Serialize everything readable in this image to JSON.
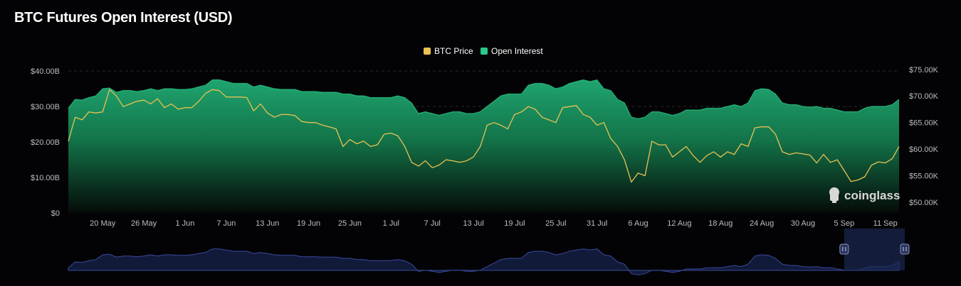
{
  "page": {
    "title": "BTC Futures Open Interest (USD)"
  },
  "watermark": {
    "text": "coinglass",
    "icon": "coinglass-logo-icon"
  },
  "colors": {
    "background": "#030306",
    "price_line": "#e8c252",
    "oi_fill_top": "#1fa46f",
    "oi_fill_bottom": "#050b08",
    "oi_legend": "#28c989",
    "grid": "#2a2a2a",
    "text": "#bdbdbd",
    "navigator_line": "#3a4a9a",
    "navigator_fill": "#121a3a",
    "navigator_selection": "#1b2a55"
  },
  "chart_data": {
    "type": "area",
    "title": "BTC Futures Open Interest (USD)",
    "legend": {
      "position": "top-center",
      "entries": [
        {
          "name": "BTC Price",
          "color": "#e8c252"
        },
        {
          "name": "Open Interest",
          "color": "#28c989"
        }
      ]
    },
    "x_ticks": [
      "20 May",
      "26 May",
      "1 Jun",
      "7 Jun",
      "13 Jun",
      "19 Jun",
      "25 Jun",
      "1 Jul",
      "7 Jul",
      "13 Jul",
      "19 Jul",
      "25 Jul",
      "31 Jul",
      "6 Aug",
      "12 Aug",
      "18 Aug",
      "24 Aug",
      "30 Aug",
      "5 Sep",
      "11 Sep"
    ],
    "x_range": [
      "2024-05-15",
      "2024-09-13"
    ],
    "y_left": {
      "ticks": [
        "$0",
        "$10.00B",
        "$20.00B",
        "$30.00B",
        "$40.00B"
      ],
      "range": [
        0,
        40
      ],
      "unit": "USD billions"
    },
    "y_right": {
      "ticks": [
        "$50.00K",
        "$55.00K",
        "$60.00K",
        "$65.00K",
        "$70.00K",
        "$75.00K"
      ],
      "range": [
        48000,
        74700
      ],
      "unit": "USD"
    },
    "grid": true,
    "series": [
      {
        "name": "Open Interest",
        "axis": "left",
        "points": [
          [
            "2024-05-15",
            29.5
          ],
          [
            "2024-05-16",
            32.0
          ],
          [
            "2024-05-17",
            31.8
          ],
          [
            "2024-05-18",
            32.5
          ],
          [
            "2024-05-19",
            33.0
          ],
          [
            "2024-05-20",
            35.0
          ],
          [
            "2024-05-21",
            35.2
          ],
          [
            "2024-05-22",
            34.0
          ],
          [
            "2024-05-23",
            34.5
          ],
          [
            "2024-05-24",
            34.5
          ],
          [
            "2024-05-25",
            34.2
          ],
          [
            "2024-05-26",
            34.5
          ],
          [
            "2024-05-27",
            35.0
          ],
          [
            "2024-05-28",
            34.5
          ],
          [
            "2024-05-29",
            35.0
          ],
          [
            "2024-05-30",
            35.0
          ],
          [
            "2024-05-31",
            34.8
          ],
          [
            "2024-06-01",
            34.8
          ],
          [
            "2024-06-02",
            35.0
          ],
          [
            "2024-06-03",
            35.5
          ],
          [
            "2024-06-04",
            36.0
          ],
          [
            "2024-06-05",
            37.5
          ],
          [
            "2024-06-06",
            37.5
          ],
          [
            "2024-06-07",
            37.0
          ],
          [
            "2024-06-08",
            36.5
          ],
          [
            "2024-06-09",
            36.5
          ],
          [
            "2024-06-10",
            36.5
          ],
          [
            "2024-06-11",
            35.5
          ],
          [
            "2024-06-12",
            36.0
          ],
          [
            "2024-06-13",
            35.5
          ],
          [
            "2024-06-14",
            35.0
          ],
          [
            "2024-06-15",
            34.8
          ],
          [
            "2024-06-16",
            34.8
          ],
          [
            "2024-06-17",
            34.8
          ],
          [
            "2024-06-18",
            34.2
          ],
          [
            "2024-06-19",
            34.2
          ],
          [
            "2024-06-20",
            34.2
          ],
          [
            "2024-06-21",
            34.0
          ],
          [
            "2024-06-22",
            34.0
          ],
          [
            "2024-06-23",
            34.0
          ],
          [
            "2024-06-24",
            33.5
          ],
          [
            "2024-06-25",
            33.5
          ],
          [
            "2024-06-26",
            33.0
          ],
          [
            "2024-06-27",
            33.0
          ],
          [
            "2024-06-28",
            32.5
          ],
          [
            "2024-06-29",
            32.5
          ],
          [
            "2024-06-30",
            32.5
          ],
          [
            "2024-07-01",
            32.5
          ],
          [
            "2024-07-02",
            33.0
          ],
          [
            "2024-07-03",
            32.5
          ],
          [
            "2024-07-04",
            31.0
          ],
          [
            "2024-07-05",
            28.0
          ],
          [
            "2024-07-06",
            28.5
          ],
          [
            "2024-07-07",
            28.0
          ],
          [
            "2024-07-08",
            27.5
          ],
          [
            "2024-07-09",
            28.0
          ],
          [
            "2024-07-10",
            28.5
          ],
          [
            "2024-07-11",
            28.5
          ],
          [
            "2024-07-12",
            28.0
          ],
          [
            "2024-07-13",
            28.0
          ],
          [
            "2024-07-14",
            28.5
          ],
          [
            "2024-07-15",
            30.0
          ],
          [
            "2024-07-16",
            31.5
          ],
          [
            "2024-07-17",
            33.0
          ],
          [
            "2024-07-18",
            33.5
          ],
          [
            "2024-07-19",
            33.5
          ],
          [
            "2024-07-20",
            33.5
          ],
          [
            "2024-07-21",
            36.0
          ],
          [
            "2024-07-22",
            36.5
          ],
          [
            "2024-07-23",
            36.5
          ],
          [
            "2024-07-24",
            36.0
          ],
          [
            "2024-07-25",
            35.0
          ],
          [
            "2024-07-26",
            35.5
          ],
          [
            "2024-07-27",
            36.5
          ],
          [
            "2024-07-28",
            37.0
          ],
          [
            "2024-07-29",
            37.5
          ],
          [
            "2024-07-30",
            37.0
          ],
          [
            "2024-07-31",
            37.5
          ],
          [
            "2024-08-01",
            35.0
          ],
          [
            "2024-08-02",
            34.5
          ],
          [
            "2024-08-03",
            32.0
          ],
          [
            "2024-08-04",
            31.0
          ],
          [
            "2024-08-05",
            27.0
          ],
          [
            "2024-08-06",
            26.5
          ],
          [
            "2024-08-07",
            27.0
          ],
          [
            "2024-08-08",
            28.5
          ],
          [
            "2024-08-09",
            28.5
          ],
          [
            "2024-08-10",
            28.0
          ],
          [
            "2024-08-11",
            27.5
          ],
          [
            "2024-08-12",
            28.0
          ],
          [
            "2024-08-13",
            29.0
          ],
          [
            "2024-08-14",
            29.0
          ],
          [
            "2024-08-15",
            29.0
          ],
          [
            "2024-08-16",
            29.5
          ],
          [
            "2024-08-17",
            29.5
          ],
          [
            "2024-08-18",
            29.5
          ],
          [
            "2024-08-19",
            30.0
          ],
          [
            "2024-08-20",
            30.5
          ],
          [
            "2024-08-21",
            30.0
          ],
          [
            "2024-08-22",
            31.0
          ],
          [
            "2024-08-23",
            34.5
          ],
          [
            "2024-08-24",
            35.0
          ],
          [
            "2024-08-25",
            34.8
          ],
          [
            "2024-08-26",
            33.5
          ],
          [
            "2024-08-27",
            31.0
          ],
          [
            "2024-08-28",
            30.5
          ],
          [
            "2024-08-29",
            30.5
          ],
          [
            "2024-08-30",
            30.0
          ],
          [
            "2024-08-31",
            29.8
          ],
          [
            "2024-09-01",
            30.0
          ],
          [
            "2024-09-02",
            29.5
          ],
          [
            "2024-09-03",
            29.5
          ],
          [
            "2024-09-04",
            29.0
          ],
          [
            "2024-09-05",
            28.5
          ],
          [
            "2024-09-06",
            28.5
          ],
          [
            "2024-09-07",
            28.5
          ],
          [
            "2024-09-08",
            29.5
          ],
          [
            "2024-09-09",
            30.0
          ],
          [
            "2024-09-10",
            30.0
          ],
          [
            "2024-09-11",
            30.0
          ],
          [
            "2024-09-12",
            30.5
          ],
          [
            "2024-09-13",
            32.0
          ]
        ]
      },
      {
        "name": "BTC Price",
        "axis": "right",
        "points": [
          [
            "2024-05-15",
            61500
          ],
          [
            "2024-05-16",
            66000
          ],
          [
            "2024-05-17",
            65500
          ],
          [
            "2024-05-18",
            67000
          ],
          [
            "2024-05-19",
            66800
          ],
          [
            "2024-05-20",
            67000
          ],
          [
            "2024-05-21",
            71200
          ],
          [
            "2024-05-22",
            70000
          ],
          [
            "2024-05-23",
            68000
          ],
          [
            "2024-05-24",
            68500
          ],
          [
            "2024-05-25",
            69000
          ],
          [
            "2024-05-26",
            69200
          ],
          [
            "2024-05-27",
            68500
          ],
          [
            "2024-05-28",
            69500
          ],
          [
            "2024-05-29",
            67800
          ],
          [
            "2024-05-30",
            68500
          ],
          [
            "2024-05-31",
            67500
          ],
          [
            "2024-06-01",
            67800
          ],
          [
            "2024-06-02",
            67800
          ],
          [
            "2024-06-03",
            69000
          ],
          [
            "2024-06-04",
            70500
          ],
          [
            "2024-06-05",
            71200
          ],
          [
            "2024-06-06",
            71000
          ],
          [
            "2024-06-07",
            69800
          ],
          [
            "2024-06-08",
            69800
          ],
          [
            "2024-06-09",
            69800
          ],
          [
            "2024-06-10",
            69700
          ],
          [
            "2024-06-11",
            67200
          ],
          [
            "2024-06-12",
            68500
          ],
          [
            "2024-06-13",
            66800
          ],
          [
            "2024-06-14",
            66000
          ],
          [
            "2024-06-15",
            66500
          ],
          [
            "2024-06-16",
            66500
          ],
          [
            "2024-06-17",
            66300
          ],
          [
            "2024-06-18",
            65200
          ],
          [
            "2024-06-19",
            65000
          ],
          [
            "2024-06-20",
            65000
          ],
          [
            "2024-06-21",
            64500
          ],
          [
            "2024-06-22",
            64200
          ],
          [
            "2024-06-23",
            63800
          ],
          [
            "2024-06-24",
            60500
          ],
          [
            "2024-06-25",
            61800
          ],
          [
            "2024-06-26",
            61000
          ],
          [
            "2024-06-27",
            61500
          ],
          [
            "2024-06-28",
            60500
          ],
          [
            "2024-06-29",
            60800
          ],
          [
            "2024-06-30",
            62800
          ],
          [
            "2024-07-01",
            63000
          ],
          [
            "2024-07-02",
            62500
          ],
          [
            "2024-07-03",
            60500
          ],
          [
            "2024-07-04",
            57500
          ],
          [
            "2024-07-05",
            56800
          ],
          [
            "2024-07-06",
            57800
          ],
          [
            "2024-07-07",
            56500
          ],
          [
            "2024-07-08",
            57000
          ],
          [
            "2024-07-09",
            58000
          ],
          [
            "2024-07-10",
            57800
          ],
          [
            "2024-07-11",
            57500
          ],
          [
            "2024-07-12",
            57800
          ],
          [
            "2024-07-13",
            58500
          ],
          [
            "2024-07-14",
            60500
          ],
          [
            "2024-07-15",
            64500
          ],
          [
            "2024-07-16",
            65000
          ],
          [
            "2024-07-17",
            64500
          ],
          [
            "2024-07-18",
            63800
          ],
          [
            "2024-07-19",
            66500
          ],
          [
            "2024-07-20",
            67000
          ],
          [
            "2024-07-21",
            68000
          ],
          [
            "2024-07-22",
            67500
          ],
          [
            "2024-07-23",
            66000
          ],
          [
            "2024-07-24",
            65500
          ],
          [
            "2024-07-25",
            65000
          ],
          [
            "2024-07-26",
            67800
          ],
          [
            "2024-07-27",
            68000
          ],
          [
            "2024-07-28",
            68200
          ],
          [
            "2024-07-29",
            66500
          ],
          [
            "2024-07-30",
            66000
          ],
          [
            "2024-07-31",
            64500
          ],
          [
            "2024-08-01",
            65000
          ],
          [
            "2024-08-02",
            62000
          ],
          [
            "2024-08-03",
            60500
          ],
          [
            "2024-08-04",
            58000
          ],
          [
            "2024-08-05",
            53800
          ],
          [
            "2024-08-06",
            55500
          ],
          [
            "2024-08-07",
            55000
          ],
          [
            "2024-08-08",
            61500
          ],
          [
            "2024-08-09",
            60800
          ],
          [
            "2024-08-10",
            60800
          ],
          [
            "2024-08-11",
            58500
          ],
          [
            "2024-08-12",
            59500
          ],
          [
            "2024-08-13",
            60500
          ],
          [
            "2024-08-14",
            58800
          ],
          [
            "2024-08-15",
            57500
          ],
          [
            "2024-08-16",
            58800
          ],
          [
            "2024-08-17",
            59500
          ],
          [
            "2024-08-18",
            58500
          ],
          [
            "2024-08-19",
            59500
          ],
          [
            "2024-08-20",
            59000
          ],
          [
            "2024-08-21",
            61000
          ],
          [
            "2024-08-22",
            60500
          ],
          [
            "2024-08-23",
            64000
          ],
          [
            "2024-08-24",
            64200
          ],
          [
            "2024-08-25",
            64200
          ],
          [
            "2024-08-26",
            62800
          ],
          [
            "2024-08-27",
            59500
          ],
          [
            "2024-08-28",
            59000
          ],
          [
            "2024-08-29",
            59300
          ],
          [
            "2024-08-30",
            59100
          ],
          [
            "2024-08-31",
            58900
          ],
          [
            "2024-09-01",
            57400
          ],
          [
            "2024-09-02",
            59000
          ],
          [
            "2024-09-03",
            57500
          ],
          [
            "2024-09-04",
            58000
          ],
          [
            "2024-09-05",
            56000
          ],
          [
            "2024-09-06",
            53900
          ],
          [
            "2024-09-07",
            54200
          ],
          [
            "2024-09-08",
            54800
          ],
          [
            "2024-09-09",
            57000
          ],
          [
            "2024-09-10",
            57600
          ],
          [
            "2024-09-11",
            57400
          ],
          [
            "2024-09-12",
            58200
          ],
          [
            "2024-09-13",
            60500
          ]
        ]
      }
    ],
    "navigator": {
      "selection": [
        "2024-09-05",
        "2024-09-13"
      ]
    }
  }
}
